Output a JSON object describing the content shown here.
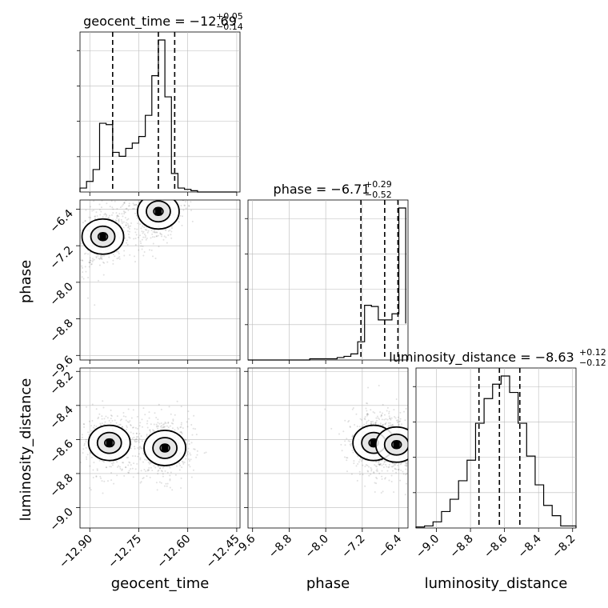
{
  "chart_data": {
    "type": "corner",
    "parameters": [
      "geocent_time",
      "phase",
      "luminosity_distance"
    ],
    "ranges": {
      "geocent_time": [
        -12.93,
        -12.44
      ],
      "phase": [
        -9.7,
        -6.2
      ],
      "luminosity_distance": [
        -9.12,
        -8.18
      ]
    },
    "ticks": {
      "geocent_time": [
        -12.9,
        -12.75,
        -12.6,
        -12.45
      ],
      "phase": [
        -9.6,
        -8.8,
        -8.0,
        -7.2,
        -6.4
      ],
      "luminosity_distance": [
        -9.0,
        -8.8,
        -8.6,
        -8.4,
        -8.2
      ]
    },
    "tick_labels": {
      "geocent_time": [
        "−12.90",
        "−12.75",
        "−12.60",
        "−12.45"
      ],
      "phase": [
        "−9.6",
        "−8.8",
        "−8.0",
        "−7.2",
        "−6.4"
      ],
      "luminosity_distance": [
        "−9.0",
        "−8.8",
        "−8.6",
        "−8.4",
        "−8.2"
      ]
    },
    "titles": [
      {
        "param": "geocent_time",
        "prefix": "geocent_time = −12.69",
        "plus": "+0.05",
        "minus": "−0.14"
      },
      {
        "param": "phase",
        "prefix": "phase = −6.71",
        "plus": "+0.29",
        "minus": "−0.52"
      },
      {
        "param": "luminosity_distance",
        "prefix": "luminosity_distance = −8.63",
        "plus": "+0.12",
        "minus": "−0.12"
      }
    ],
    "quantiles": {
      "geocent_time": [
        -12.83,
        -12.69,
        -12.64
      ],
      "phase": [
        -7.23,
        -6.71,
        -6.42
      ],
      "luminosity_distance": [
        -8.75,
        -8.63,
        -8.51
      ]
    },
    "histograms": {
      "geocent_time": {
        "edges": [
          -12.93,
          -12.91,
          -12.89,
          -12.87,
          -12.85,
          -12.83,
          -12.81,
          -12.79,
          -12.77,
          -12.75,
          -12.73,
          -12.71,
          -12.69,
          -12.67,
          -12.65,
          -12.63,
          -12.61,
          -12.59,
          -12.57,
          -12.55,
          -12.53,
          -12.51,
          -12.49,
          -12.47,
          -12.45
        ],
        "counts": [
          3,
          8,
          17,
          52,
          51,
          30,
          27,
          33,
          37,
          42,
          58,
          88,
          115,
          72,
          14,
          3,
          2,
          1,
          0,
          0,
          0,
          0,
          0,
          0
        ]
      },
      "phase": {
        "edges": [
          -9.7,
          -9.55,
          -9.4,
          -9.25,
          -9.1,
          -8.95,
          -8.8,
          -8.65,
          -8.5,
          -8.35,
          -8.2,
          -8.05,
          -7.9,
          -7.75,
          -7.6,
          -7.45,
          -7.3,
          -7.15,
          -7.0,
          -6.85,
          -6.7,
          -6.55,
          -6.4,
          -6.25
        ],
        "counts": [
          0,
          0,
          0,
          0,
          0,
          0,
          0,
          0,
          0,
          1,
          1,
          1,
          1,
          2,
          3,
          5,
          15,
          45,
          44,
          33,
          33,
          38,
          125,
          30
        ]
      },
      "luminosity_distance": {
        "edges": [
          -9.12,
          -9.07,
          -9.02,
          -8.97,
          -8.92,
          -8.87,
          -8.82,
          -8.77,
          -8.72,
          -8.67,
          -8.62,
          -8.57,
          -8.52,
          -8.47,
          -8.42,
          -8.37,
          -8.32,
          -8.27,
          -8.22,
          -8.17
        ],
        "counts": [
          0.5,
          1,
          3,
          8,
          14,
          23,
          33,
          51,
          63,
          70,
          74,
          66,
          51,
          35,
          21,
          11,
          6,
          1,
          1
        ]
      }
    },
    "scatter_2d": [
      {
        "x": "geocent_time",
        "y": "phase",
        "mode_points": [
          [
            -12.86,
            -7.0
          ],
          [
            -12.69,
            -6.45
          ]
        ]
      },
      {
        "x": "geocent_time",
        "y": "luminosity_distance",
        "mode_points": [
          [
            -12.84,
            -8.62
          ],
          [
            -12.67,
            -8.65
          ]
        ]
      },
      {
        "x": "phase",
        "y": "luminosity_distance",
        "mode_points": [
          [
            -6.95,
            -8.62
          ],
          [
            -6.45,
            -8.63
          ]
        ]
      }
    ],
    "grid": true
  }
}
